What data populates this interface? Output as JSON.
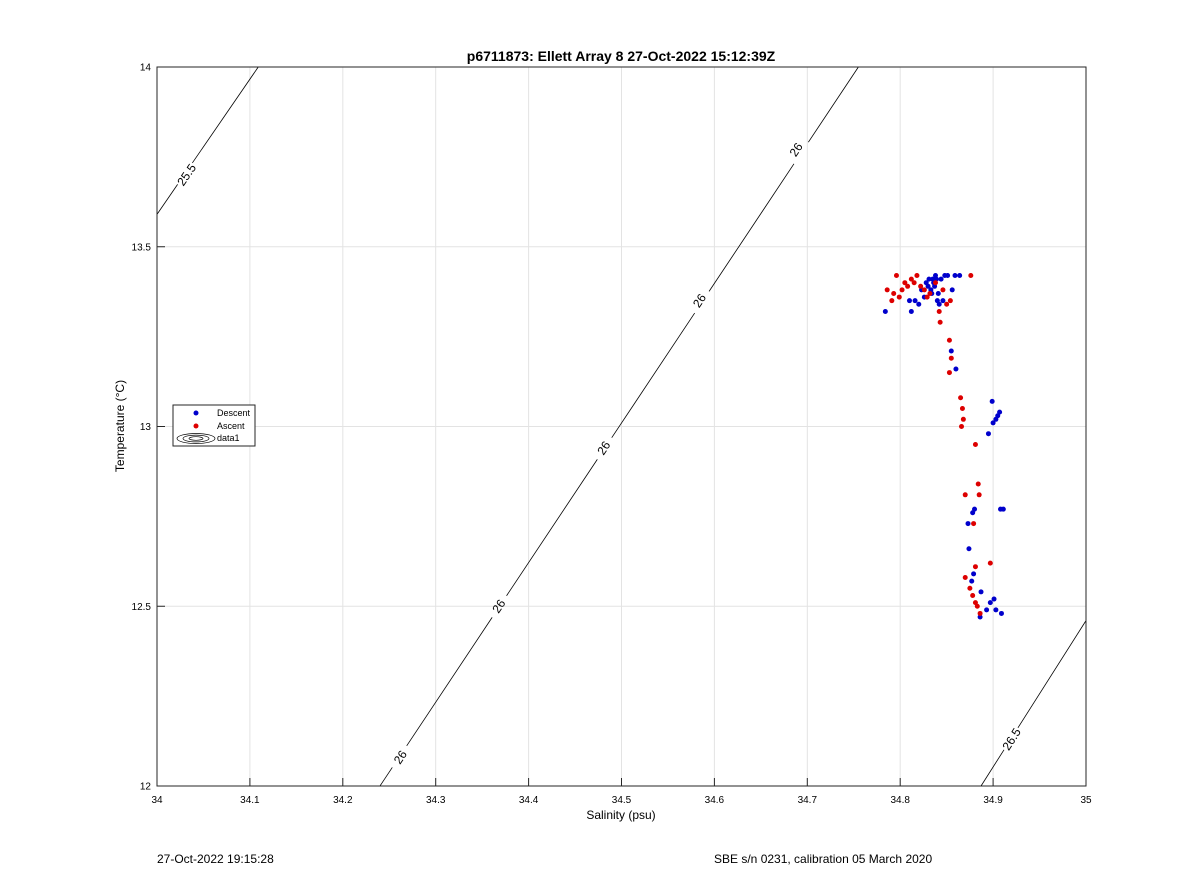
{
  "chart_data": {
    "type": "scatter",
    "title": "p6711873: Ellett Array 8 27-Oct-2022 15:12:39Z",
    "xlabel": "Salinity (psu)",
    "ylabel": "Temperature (°C)",
    "xlim": [
      34,
      35
    ],
    "ylim": [
      12,
      14
    ],
    "xticks": [
      34,
      34.1,
      34.2,
      34.3,
      34.4,
      34.5,
      34.6,
      34.7,
      34.8,
      34.9,
      35
    ],
    "yticks": [
      12,
      12.5,
      13,
      13.5,
      14
    ],
    "xtick_labels": [
      "34",
      "34.1",
      "34.2",
      "34.3",
      "34.4",
      "34.5",
      "34.6",
      "34.7",
      "34.8",
      "34.9",
      "35"
    ],
    "ytick_labels": [
      "12",
      "12.5",
      "13",
      "13.5",
      "14"
    ],
    "grid": true,
    "legend_position": "left",
    "legend": [
      {
        "label": "Descent",
        "color": "#0000cc",
        "marker": "dot"
      },
      {
        "label": "Ascent",
        "color": "#dd0000",
        "marker": "dot"
      },
      {
        "label": "data1",
        "color": "#000000",
        "marker": "contour"
      }
    ],
    "series": [
      {
        "name": "Descent",
        "color": "#0000cc",
        "points": [
          [
            34.784,
            13.32
          ],
          [
            34.81,
            13.35
          ],
          [
            34.812,
            13.32
          ],
          [
            34.816,
            13.35
          ],
          [
            34.82,
            13.34
          ],
          [
            34.823,
            13.38
          ],
          [
            34.826,
            13.36
          ],
          [
            34.828,
            13.4
          ],
          [
            34.83,
            13.39
          ],
          [
            34.831,
            13.41
          ],
          [
            34.833,
            13.38
          ],
          [
            34.834,
            13.37
          ],
          [
            34.835,
            13.41
          ],
          [
            34.836,
            13.4
          ],
          [
            34.837,
            13.39
          ],
          [
            34.838,
            13.42
          ],
          [
            34.839,
            13.41
          ],
          [
            34.84,
            13.35
          ],
          [
            34.841,
            13.37
          ],
          [
            34.842,
            13.34
          ],
          [
            34.844,
            13.41
          ],
          [
            34.846,
            13.35
          ],
          [
            34.848,
            13.42
          ],
          [
            34.851,
            13.42
          ],
          [
            34.856,
            13.38
          ],
          [
            34.859,
            13.42
          ],
          [
            34.864,
            13.42
          ],
          [
            34.855,
            13.21
          ],
          [
            34.86,
            13.16
          ],
          [
            34.895,
            12.98
          ],
          [
            34.899,
            13.07
          ],
          [
            34.9,
            13.01
          ],
          [
            34.903,
            13.02
          ],
          [
            34.905,
            13.03
          ],
          [
            34.907,
            13.04
          ],
          [
            34.908,
            12.77
          ],
          [
            34.911,
            12.77
          ],
          [
            34.878,
            12.76
          ],
          [
            34.88,
            12.77
          ],
          [
            34.873,
            12.73
          ],
          [
            34.874,
            12.66
          ],
          [
            34.877,
            12.57
          ],
          [
            34.879,
            12.59
          ],
          [
            34.887,
            12.54
          ],
          [
            34.886,
            12.47
          ],
          [
            34.893,
            12.49
          ],
          [
            34.897,
            12.51
          ],
          [
            34.901,
            12.52
          ],
          [
            34.903,
            12.49
          ],
          [
            34.909,
            12.48
          ]
        ]
      },
      {
        "name": "Ascent",
        "color": "#dd0000",
        "points": [
          [
            34.786,
            13.38
          ],
          [
            34.791,
            13.35
          ],
          [
            34.793,
            13.37
          ],
          [
            34.796,
            13.42
          ],
          [
            34.799,
            13.36
          ],
          [
            34.802,
            13.38
          ],
          [
            34.805,
            13.4
          ],
          [
            34.808,
            13.39
          ],
          [
            34.812,
            13.41
          ],
          [
            34.815,
            13.4
          ],
          [
            34.818,
            13.42
          ],
          [
            34.822,
            13.39
          ],
          [
            34.826,
            13.38
          ],
          [
            34.829,
            13.36
          ],
          [
            34.832,
            13.37
          ],
          [
            34.838,
            13.4
          ],
          [
            34.842,
            13.32
          ],
          [
            34.843,
            13.29
          ],
          [
            34.846,
            13.38
          ],
          [
            34.85,
            13.34
          ],
          [
            34.854,
            13.35
          ],
          [
            34.876,
            13.42
          ],
          [
            34.853,
            13.24
          ],
          [
            34.855,
            13.19
          ],
          [
            34.853,
            13.15
          ],
          [
            34.865,
            13.08
          ],
          [
            34.867,
            13.05
          ],
          [
            34.868,
            13.02
          ],
          [
            34.866,
            13.0
          ],
          [
            34.881,
            12.95
          ],
          [
            34.87,
            12.81
          ],
          [
            34.884,
            12.84
          ],
          [
            34.885,
            12.81
          ],
          [
            34.879,
            12.73
          ],
          [
            34.87,
            12.58
          ],
          [
            34.875,
            12.55
          ],
          [
            34.878,
            12.53
          ],
          [
            34.881,
            12.51
          ],
          [
            34.883,
            12.5
          ],
          [
            34.881,
            12.61
          ],
          [
            34.886,
            12.48
          ],
          [
            34.897,
            12.62
          ]
        ]
      }
    ],
    "contours": [
      {
        "label": "25.5",
        "points": [
          [
            34.0,
            13.59
          ],
          [
            34.109,
            14.0
          ]
        ],
        "label_positions": [
          [
            34.032,
            13.7
          ]
        ]
      },
      {
        "label": "26",
        "points": [
          [
            34.24,
            12.0
          ],
          [
            34.755,
            14.0
          ]
        ],
        "label_positions": [
          [
            34.262,
            12.08
          ],
          [
            34.368,
            12.5
          ],
          [
            34.481,
            12.94
          ],
          [
            34.584,
            13.35
          ],
          [
            34.688,
            13.77
          ]
        ]
      },
      {
        "label": "26.5",
        "points": [
          [
            34.887,
            12.0
          ],
          [
            35.0,
            12.46
          ]
        ],
        "label_positions": [
          [
            34.92,
            12.13
          ]
        ]
      }
    ]
  },
  "footer": {
    "timestamp": "27-Oct-2022 19:15:28",
    "sensor_info": "SBE s/n 0231, calibration 05 March 2020"
  }
}
